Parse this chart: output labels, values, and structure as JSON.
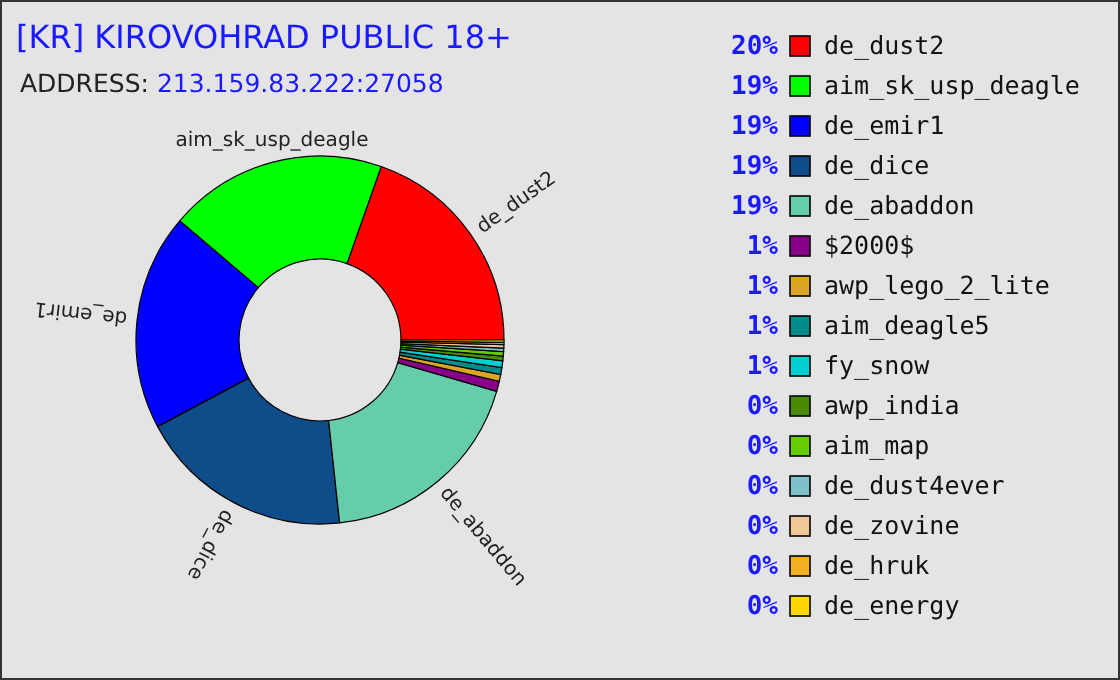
{
  "chart_data": {
    "type": "donut",
    "title": "[KR] KIROVOHRAD PUBLIC 18+",
    "subtitle": "ADDRESS: 213.159.83.222:27058",
    "categories": [
      "de_dust2",
      "aim_sk_usp_deagle",
      "de_emir1",
      "de_dice",
      "de_abaddon",
      "$2000$",
      "awp_lego_2_lite",
      "aim_deagle5",
      "fy_snow",
      "awp_india",
      "aim_map",
      "de_dust4ever",
      "de_zovine",
      "de_hruk",
      "de_energy"
    ],
    "values": [
      19.6,
      19.2,
      19.0,
      18.9,
      18.8,
      0.9,
      0.6,
      0.6,
      0.6,
      0.4,
      0.4,
      0.3,
      0.3,
      0.2,
      0.2
    ],
    "value_labels": [
      "20%",
      "19%",
      "19%",
      "19%",
      "19%",
      "1%",
      "1%",
      "1%",
      "1%",
      "0%",
      "0%",
      "0%",
      "0%",
      "0%",
      "0%"
    ],
    "colors": [
      "#ff0000",
      "#00ff00",
      "#0000ff",
      "#0f4c8a",
      "#66cdaa",
      "#8b008b",
      "#daa520",
      "#008b8b",
      "#00ced1",
      "#4b8b00",
      "#66cc00",
      "#80c0cc",
      "#f0c898",
      "#f0b020",
      "#ffd700"
    ],
    "legend": "right"
  }
}
